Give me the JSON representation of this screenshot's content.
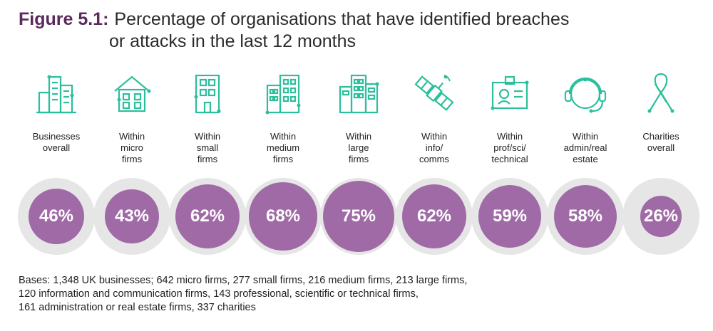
{
  "title": {
    "figure": "Figure 5.1:",
    "line1": "Percentage of organisations that have identified breaches",
    "line2": "or attacks in the last 12 months"
  },
  "colors": {
    "accent": "#9f6aa6",
    "title_accent": "#5b2a5c",
    "ring": "#e6e6e6",
    "icon": "#2bbf9c"
  },
  "chart_data": {
    "type": "bar",
    "categories": [
      "Businesses overall",
      "Within micro firms",
      "Within small firms",
      "Within medium firms",
      "Within large firms",
      "Within info/ comms",
      "Within prof/sci/ technical",
      "Within admin/real estate",
      "Charities overall"
    ],
    "values": [
      46,
      43,
      62,
      68,
      75,
      62,
      59,
      58,
      26
    ],
    "labels": [
      "46%",
      "43%",
      "62%",
      "68%",
      "75%",
      "62%",
      "59%",
      "58%",
      "26%"
    ],
    "title": "Percentage of organisations that have identified breaches or attacks in the last 12 months",
    "ylim": [
      0,
      100
    ]
  },
  "items": [
    {
      "label": "Businesses\noverall",
      "value_label": "46%",
      "icon": "city-buildings-icon"
    },
    {
      "label": "Within\nmicro\nfirms",
      "value_label": "43%",
      "icon": "house-icon"
    },
    {
      "label": "Within\nsmall\nfirms",
      "value_label": "62%",
      "icon": "small-building-icon"
    },
    {
      "label": "Within\nmedium\nfirms",
      "value_label": "68%",
      "icon": "medium-building-icon"
    },
    {
      "label": "Within\nlarge\nfirms",
      "value_label": "75%",
      "icon": "large-building-icon"
    },
    {
      "label": "Within\ninfo/\ncomms",
      "value_label": "62%",
      "icon": "satellite-icon"
    },
    {
      "label": "Within\nprof/sci/\ntechnical",
      "value_label": "59%",
      "icon": "id-badge-icon"
    },
    {
      "label": "Within\nadmin/real\nestate",
      "value_label": "58%",
      "icon": "headset-icon"
    },
    {
      "label": "Charities\noverall",
      "value_label": "26%",
      "icon": "ribbon-icon"
    }
  ],
  "bases": {
    "line1": "Bases: 1,348 UK businesses; 642 micro firms, 277 small firms, 216 medium firms, 213 large firms,",
    "line2": "120 information and communication firms, 143 professional, scientific or technical firms,",
    "line3": "161 administration or real estate firms, 337 charities"
  }
}
